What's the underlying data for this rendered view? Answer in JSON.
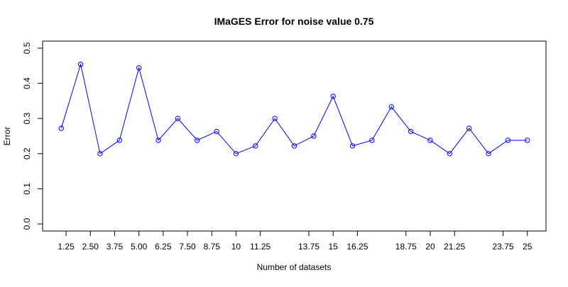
{
  "chart_data": {
    "type": "line",
    "title": "IMaGES Error for noise value 0.75",
    "x_label": "Number of datasets",
    "y_label": "Error",
    "x": [
      1,
      2,
      3,
      4,
      5,
      6,
      7,
      8,
      9,
      10,
      11,
      12,
      13,
      14,
      15,
      16,
      17,
      18,
      19,
      20,
      21,
      22,
      23,
      24,
      25
    ],
    "series": [
      {
        "color": "#0000ff",
        "values": [
          0.272,
          0.454,
          0.2,
          0.238,
          0.444,
          0.238,
          0.3,
          0.238,
          0.263,
          0.2,
          0.222,
          0.3,
          0.222,
          0.25,
          0.363,
          0.222,
          0.238,
          0.333,
          0.263,
          0.238,
          0.2,
          0.272,
          0.2,
          0.238,
          0.238
        ]
      }
    ],
    "xlim": [
      0.04,
      25.96
    ],
    "ylim": [
      -0.02,
      0.52
    ],
    "xticks": [
      1.25,
      {
        "value": 2.5,
        "label": "2.50"
      },
      3.75,
      {
        "value": 5,
        "label": "5.00"
      },
      6.25,
      {
        "value": 7.5,
        "label": "7.50"
      },
      8.75,
      10,
      11.25,
      13.75,
      15,
      16.25,
      18.75,
      20,
      21.25,
      23.75,
      25
    ],
    "yticks": [
      {
        "value": 0,
        "label": "0.0"
      },
      0.1,
      0.2,
      0.3,
      0.4,
      0.5
    ]
  }
}
